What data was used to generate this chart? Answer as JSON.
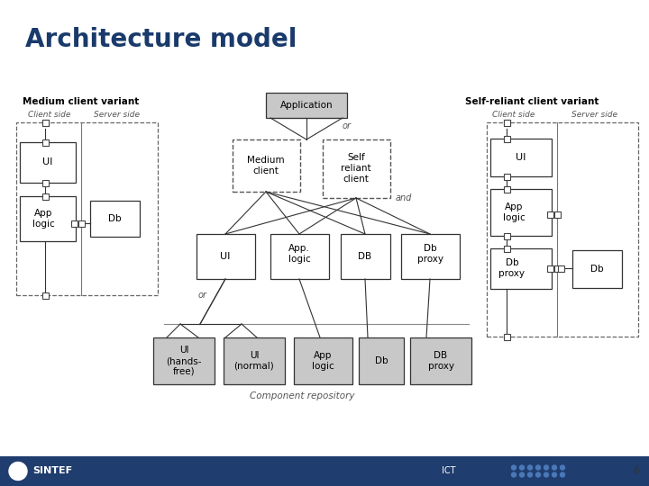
{
  "title": "Architecture model",
  "title_fontsize": 20,
  "title_color": "#1a3a6b",
  "bg_color": "#ffffff",
  "footer_color": "#1f3d6e",
  "footer_text_left": "SINTEF",
  "footer_text_mid": "ICT",
  "footer_page": "6",
  "medium_variant_label": "Medium client variant",
  "self_reliant_label": "Self-reliant client variant",
  "client_side_label": "Client side",
  "server_side_label": "Server side",
  "component_repo_label": "Component repository",
  "box_gray_fill": "#c8c8c8",
  "box_white_fill": "#ffffff",
  "line_color": "#333333",
  "text_color": "#000000",
  "label_color": "#1a3a6b"
}
